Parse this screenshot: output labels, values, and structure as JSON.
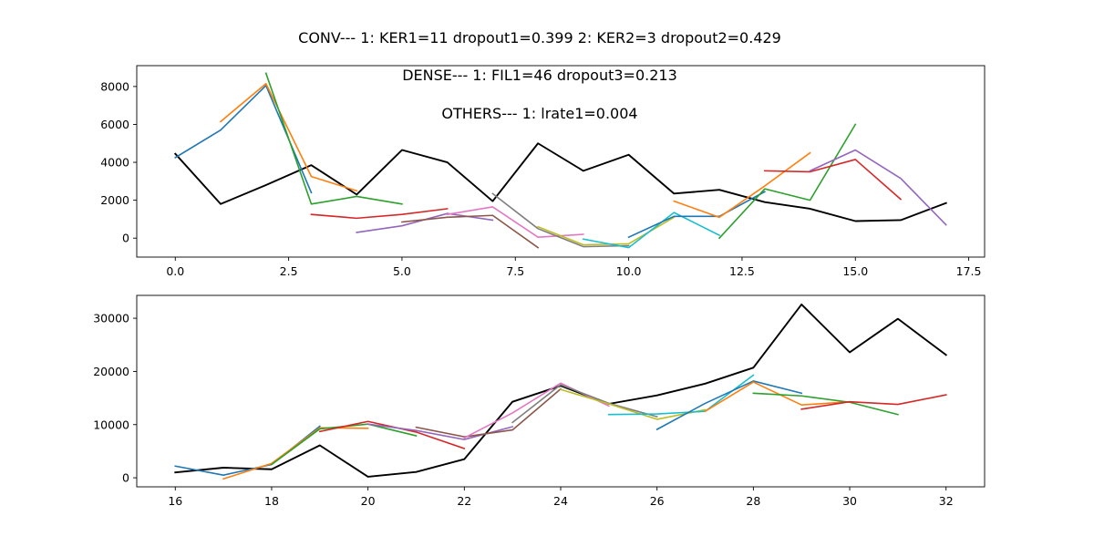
{
  "figure": {
    "suptitle": "CONV--- 1: KER1=11   dropout1=0.399   2: KER2=3   dropout2=0.429",
    "annotations": [
      "DENSE--- 1: FIL1=46   dropout3=0.213",
      "OTHERS--- 1: lrate1=0.004"
    ]
  },
  "colors": {
    "palette": [
      "#1f77b4",
      "#ff7f0e",
      "#2ca02c",
      "#d62728",
      "#9467bd",
      "#8c564b",
      "#e377c2",
      "#7f7f7f",
      "#bcbd22",
      "#17becf"
    ],
    "actual": "#000000"
  },
  "chart_data": [
    {
      "type": "line",
      "xlim": [
        -0.85,
        17.85
      ],
      "ylim": [
        -1000,
        9100
      ],
      "xticks": [
        0.0,
        2.5,
        5.0,
        7.5,
        10.0,
        12.5,
        15.0,
        17.5
      ],
      "xtick_labels": [
        "0.0",
        "2.5",
        "5.0",
        "7.5",
        "10.0",
        "12.5",
        "15.0",
        "17.5"
      ],
      "yticks": [
        0,
        2000,
        4000,
        6000,
        8000
      ],
      "ytick_labels": [
        "0",
        "2000",
        "4000",
        "6000",
        "8000"
      ],
      "grid": false,
      "series": [
        {
          "x": [
            0,
            1,
            2,
            3,
            4,
            5,
            6,
            7,
            8,
            9,
            10,
            11,
            12,
            13,
            14,
            15,
            16,
            17
          ],
          "values": [
            4450,
            1800,
            2800,
            3850,
            2300,
            4650,
            4000,
            1950,
            5000,
            3550,
            4400,
            2350,
            2550,
            1900,
            1550,
            900,
            950,
            1850
          ],
          "color_index": -1,
          "width": 1.9
        },
        {
          "x": [
            0,
            1,
            2,
            3
          ],
          "values": [
            4250,
            5700,
            8050,
            2400
          ],
          "color_index": 0
        },
        {
          "x": [
            1,
            2,
            3,
            4
          ],
          "values": [
            6150,
            8150,
            3250,
            2500
          ],
          "color_index": 1
        },
        {
          "x": [
            2,
            3,
            4,
            5
          ],
          "values": [
            8700,
            1800,
            2200,
            1800
          ],
          "color_index": 2
        },
        {
          "x": [
            3,
            4,
            5,
            6
          ],
          "values": [
            1250,
            1050,
            1250,
            1550
          ],
          "color_index": 3
        },
        {
          "x": [
            4,
            5,
            6,
            7
          ],
          "values": [
            300,
            650,
            1300,
            950
          ],
          "color_index": 4
        },
        {
          "x": [
            5,
            6,
            7,
            8
          ],
          "values": [
            850,
            1100,
            1200,
            -500
          ],
          "color_index": 5
        },
        {
          "x": [
            6,
            7,
            8,
            9
          ],
          "values": [
            1250,
            1650,
            50,
            200
          ],
          "color_index": 6
        },
        {
          "x": [
            7,
            8,
            9,
            10
          ],
          "values": [
            2350,
            500,
            -450,
            -400
          ],
          "color_index": 7
        },
        {
          "x": [
            8,
            9,
            10,
            11
          ],
          "values": [
            600,
            -350,
            -300,
            1100
          ],
          "color_index": 8
        },
        {
          "x": [
            9,
            10,
            11,
            12
          ],
          "values": [
            -50,
            -500,
            1350,
            150
          ],
          "color_index": 9
        },
        {
          "x": [
            10,
            11,
            12,
            13
          ],
          "values": [
            50,
            1150,
            1150,
            2450
          ],
          "color_index": 0
        },
        {
          "x": [
            11,
            12,
            13,
            14
          ],
          "values": [
            1950,
            1100,
            2750,
            4500
          ],
          "color_index": 1
        },
        {
          "x": [
            12,
            13,
            14,
            15
          ],
          "values": [
            0,
            2600,
            2000,
            6000
          ],
          "color_index": 2
        },
        {
          "x": [
            13,
            14,
            15,
            16
          ],
          "values": [
            3550,
            3500,
            4150,
            2050
          ],
          "color_index": 3
        },
        {
          "x": [
            14,
            15,
            16,
            17
          ],
          "values": [
            3550,
            4650,
            3150,
            700
          ],
          "color_index": 4
        }
      ]
    },
    {
      "type": "line",
      "xlim": [
        15.2,
        32.8
      ],
      "ylim": [
        -1700,
        34300
      ],
      "xticks": [
        16,
        18,
        20,
        22,
        24,
        26,
        28,
        30,
        32
      ],
      "xtick_labels": [
        "16",
        "18",
        "20",
        "22",
        "24",
        "26",
        "28",
        "30",
        "32"
      ],
      "yticks": [
        0,
        10000,
        20000,
        30000
      ],
      "ytick_labels": [
        "0",
        "10000",
        "20000",
        "30000"
      ],
      "grid": false,
      "series": [
        {
          "x": [
            16,
            17,
            18,
            19,
            20,
            21,
            22,
            23,
            24,
            25,
            26,
            27,
            28,
            29,
            30,
            31,
            32
          ],
          "values": [
            1000,
            1900,
            1600,
            6100,
            200,
            1100,
            3500,
            14300,
            17300,
            13900,
            15500,
            17700,
            20700,
            32600,
            23600,
            29900,
            23100
          ],
          "color_index": -1,
          "width": 1.9
        },
        {
          "x": [
            16,
            17,
            18,
            19
          ],
          "values": [
            2200,
            500,
            2500,
            9700
          ],
          "color_index": 0
        },
        {
          "x": [
            17,
            18,
            19,
            20
          ],
          "values": [
            -200,
            2700,
            9400,
            9300
          ],
          "color_index": 1
        },
        {
          "x": [
            18,
            19,
            20,
            21
          ],
          "values": [
            2500,
            9200,
            10100,
            7900
          ],
          "color_index": 2
        },
        {
          "x": [
            19,
            20,
            21,
            22
          ],
          "values": [
            8700,
            10600,
            8600,
            5500
          ],
          "color_index": 3
        },
        {
          "x": [
            20,
            21,
            22,
            23
          ],
          "values": [
            10100,
            8900,
            7200,
            9600
          ],
          "color_index": 4
        },
        {
          "x": [
            21,
            22,
            23,
            24
          ],
          "values": [
            9500,
            7700,
            9000,
            16700
          ],
          "color_index": 5
        },
        {
          "x": [
            22,
            23,
            24,
            25
          ],
          "values": [
            7500,
            12200,
            17800,
            13500
          ],
          "color_index": 6
        },
        {
          "x": [
            23,
            24,
            25,
            26
          ],
          "values": [
            10400,
            17500,
            14000,
            11500
          ],
          "color_index": 7
        },
        {
          "x": [
            24,
            25,
            26,
            27
          ],
          "values": [
            16600,
            13900,
            11000,
            12800
          ],
          "color_index": 8
        },
        {
          "x": [
            25,
            26,
            27,
            28
          ],
          "values": [
            11900,
            12000,
            12500,
            19300
          ],
          "color_index": 9
        },
        {
          "x": [
            26,
            27,
            28,
            29
          ],
          "values": [
            9100,
            14000,
            18200,
            15900
          ],
          "color_index": 0
        },
        {
          "x": [
            27,
            28,
            29,
            30
          ],
          "values": [
            12500,
            18000,
            13700,
            14300
          ],
          "color_index": 1
        },
        {
          "x": [
            28,
            29,
            30,
            31
          ],
          "values": [
            15900,
            15400,
            14200,
            11900
          ],
          "color_index": 2
        },
        {
          "x": [
            29,
            30,
            31,
            32
          ],
          "values": [
            12900,
            14300,
            13800,
            15600
          ],
          "color_index": 3
        }
      ]
    }
  ]
}
